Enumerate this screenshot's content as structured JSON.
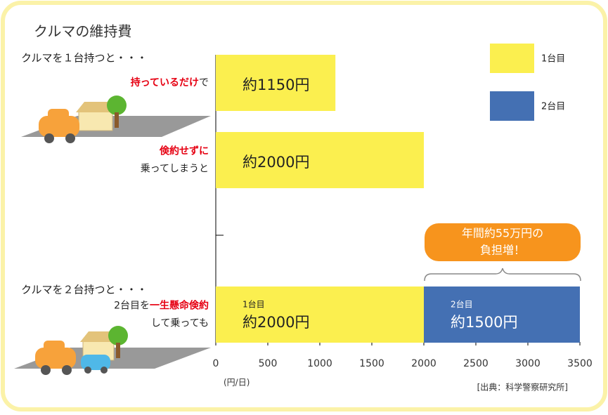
{
  "chart_data": {
    "type": "bar",
    "orientation": "horizontal",
    "stacked": true,
    "title": "クルマの維持費",
    "groups": [
      "クルマを１台持つと・・・",
      "クルマを２台持つと・・・"
    ],
    "row_labels": [
      [
        [
          {
            "text": "持っているだけ",
            "emphasis": true
          },
          {
            "text": "で"
          }
        ]
      ],
      [
        [
          {
            "text": "倹約せずに",
            "emphasis": true
          }
        ],
        [
          {
            "text": "乗ってしまうと"
          }
        ]
      ],
      null,
      [
        [
          {
            "text": "2台目を"
          },
          {
            "text": "一生懸命倹約",
            "emphasis": true
          }
        ],
        [
          {
            "text": "して乗っても"
          }
        ]
      ]
    ],
    "series": [
      {
        "name": "1台目",
        "color": "#fbef4f",
        "values": [
          1150,
          2000,
          null,
          2000
        ],
        "value_labels": [
          "約1150円",
          "約2000円",
          null,
          "約2000円"
        ]
      },
      {
        "name": "2台目",
        "color": "#4470b3",
        "values": [
          null,
          null,
          null,
          1500
        ],
        "value_labels": [
          null,
          null,
          null,
          "約1500円"
        ]
      }
    ],
    "xlim": [
      0,
      3500
    ],
    "xticks": [
      0,
      500,
      1000,
      1500,
      2000,
      2500,
      3000,
      3500
    ],
    "x_unit": "(円/日)",
    "annotation": [
      "年間約55万円の",
      "負担増！"
    ],
    "source": "[出典：科学警察研究所]"
  }
}
